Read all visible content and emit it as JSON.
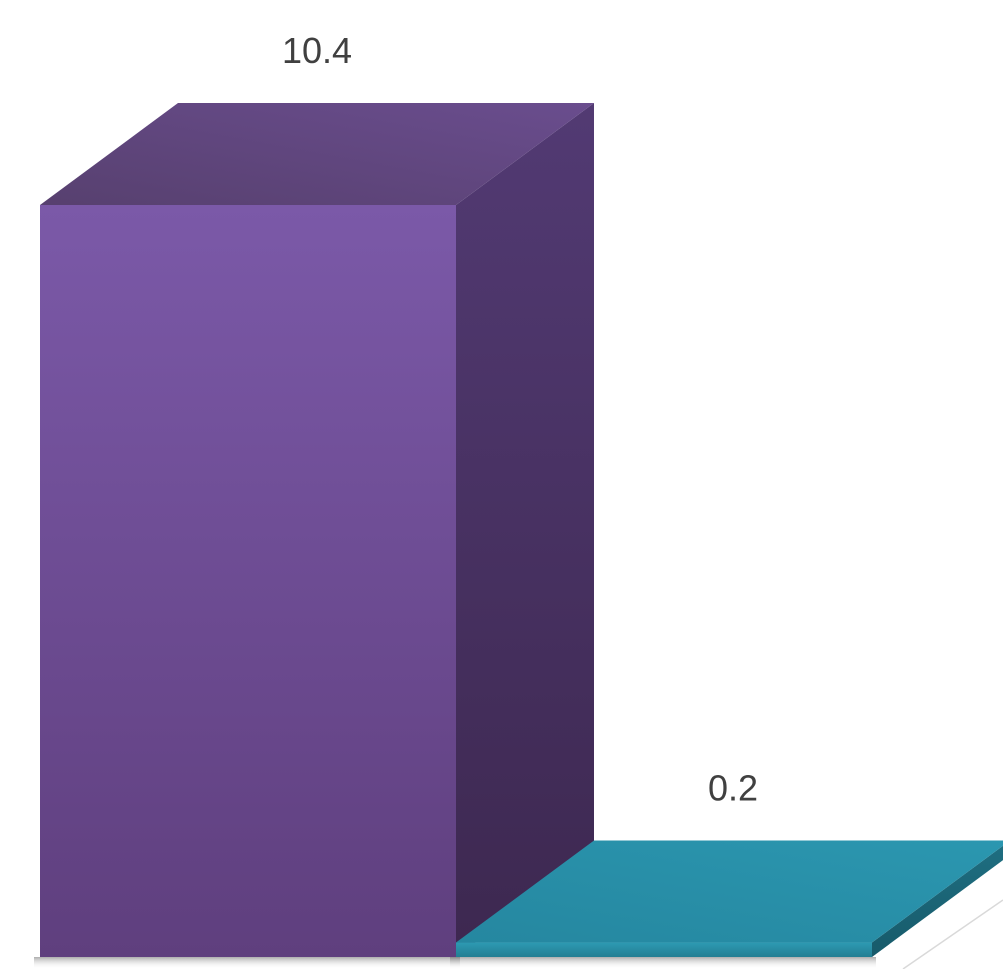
{
  "chart_data": {
    "type": "bar",
    "style": "3d",
    "categories": [
      "",
      ""
    ],
    "values": [
      10.4,
      0.2
    ],
    "data_labels": [
      "10.4",
      "0.2"
    ],
    "colors": [
      "#7a58a6",
      "#2b94ad"
    ],
    "ylim": [
      0,
      10.4
    ],
    "grid": false,
    "legend": "none"
  }
}
